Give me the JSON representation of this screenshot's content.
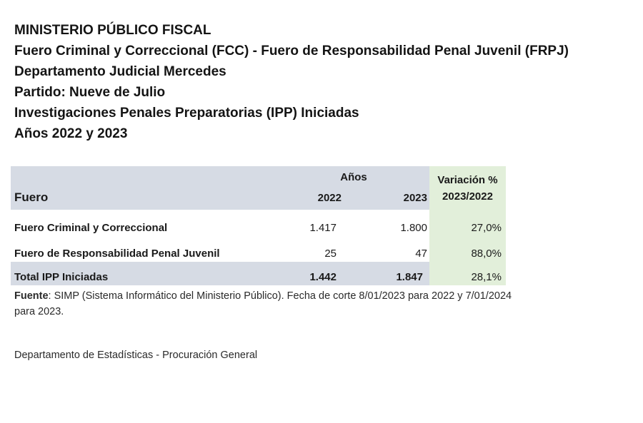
{
  "header": {
    "line1": "MINISTERIO PÚBLICO FISCAL",
    "line2": "Fuero Criminal y Correccional (FCC) - Fuero de Responsabilidad Penal Juvenil (FRPJ)",
    "line3": "Departamento Judicial Mercedes",
    "line4": "Partido: Nueve de Julio",
    "line5": "Investigaciones Penales Preparatorias (IPP) Iniciadas",
    "line6": "Años 2022 y 2023"
  },
  "table": {
    "col_fuero": "Fuero",
    "col_anios": "Años",
    "col_2022": "2022",
    "col_2023": "2023",
    "col_var_line1": "Variación %",
    "col_var_line2": "2023/2022",
    "rows": [
      {
        "fuero": "Fuero Criminal y Correccional",
        "y2022": "1.417",
        "y2023": "1.800",
        "var": "27,0%"
      },
      {
        "fuero": "Fuero de Responsabilidad Penal Juvenil",
        "y2022": "25",
        "y2023": "47",
        "var": "88,0%"
      }
    ],
    "total": {
      "fuero": "Total IPP Iniciadas",
      "y2022": "1.442",
      "y2023": "1.847",
      "var": "28,1%"
    }
  },
  "source": {
    "label": "Fuente",
    "text": ": SIMP (Sistema Informático del Ministerio Público). Fecha de corte 8/01/2023 para 2022 y 7/01/2024 para 2023."
  },
  "footer": "Departamento de Estadísticas - Procuración General"
}
